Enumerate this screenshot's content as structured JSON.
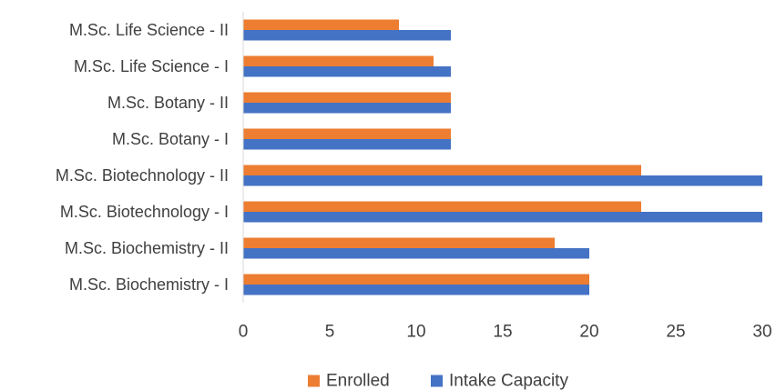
{
  "chart_data": {
    "type": "bar",
    "orientation": "horizontal",
    "categories": [
      "M.Sc. Biochemistry - I",
      "M.Sc. Biochemistry - II",
      "M.Sc. Biotechnology - I",
      "M.Sc. Biotechnology - II",
      "M.Sc. Botany - I",
      "M.Sc. Botany - II",
      "M.Sc. Life Science - I",
      "M.Sc. Life Science - II"
    ],
    "series": [
      {
        "name": "Enrolled",
        "color": "#ED7D31",
        "values": [
          20,
          18,
          23,
          23,
          12,
          12,
          11,
          9
        ]
      },
      {
        "name": "Intake Capacity",
        "color": "#4472C4",
        "values": [
          20,
          20,
          30,
          30,
          12,
          12,
          12,
          12
        ]
      }
    ],
    "xlim": [
      0,
      30
    ],
    "xticks": [
      0,
      5,
      10,
      15,
      20,
      25,
      30
    ],
    "title": "",
    "xlabel": "",
    "ylabel": "",
    "grid": false,
    "legend_position": "bottom"
  }
}
